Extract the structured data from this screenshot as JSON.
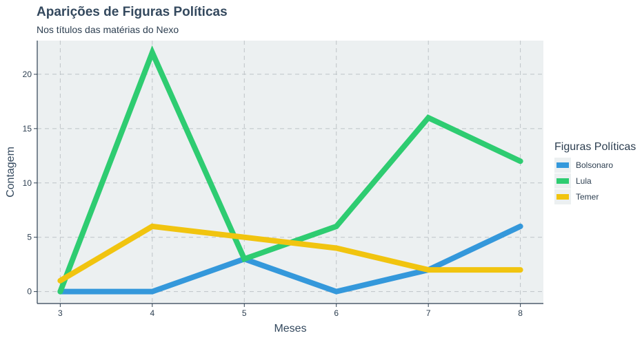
{
  "chart_data": {
    "type": "line",
    "title": "Aparições de Figuras Políticas",
    "subtitle": "Nos títulos das matérias do Nexo",
    "xlabel": "Meses",
    "ylabel": "Contagem",
    "x": [
      3,
      4,
      5,
      6,
      7,
      8
    ],
    "x_ticks": [
      "3",
      "4",
      "5",
      "6",
      "7",
      "8"
    ],
    "y_ticks": [
      "0",
      "5",
      "10",
      "15",
      "20"
    ],
    "xlim": [
      2.75,
      8.25
    ],
    "ylim": [
      -1.1,
      23.1
    ],
    "grid": true,
    "legend": {
      "title": "Figuras Políticas",
      "position": "right"
    },
    "series": [
      {
        "name": "Bolsonaro",
        "color": "#3498db",
        "values": [
          0,
          0,
          3,
          0,
          2,
          6
        ]
      },
      {
        "name": "Lula",
        "color": "#2ecc71",
        "values": [
          0,
          22,
          3,
          6,
          16,
          12
        ]
      },
      {
        "name": "Temer",
        "color": "#f1c40f",
        "values": [
          1,
          6,
          5,
          4,
          2,
          2
        ]
      }
    ]
  }
}
